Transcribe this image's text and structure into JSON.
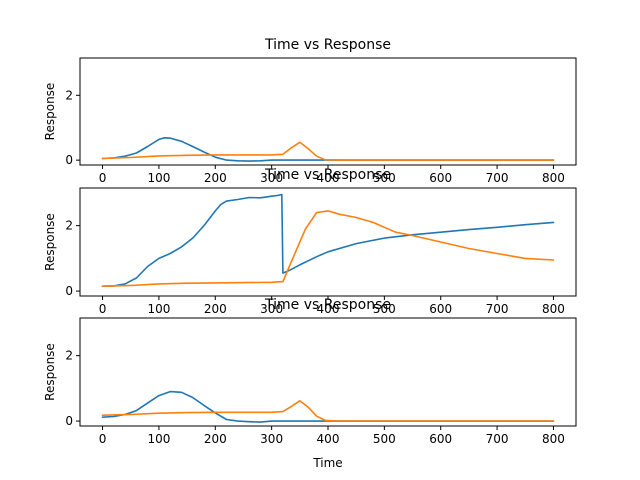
{
  "chart_data": [
    {
      "type": "line",
      "title": "Time vs Response",
      "xlabel": "",
      "ylabel": "Response",
      "xlim": [
        -40,
        840
      ],
      "ylim": [
        -0.15,
        3.15
      ],
      "xticks": [
        0,
        100,
        200,
        300,
        400,
        500,
        600,
        700,
        800
      ],
      "yticks": [
        0,
        2
      ],
      "grid": false,
      "colors": [
        "#1f77b4",
        "#ff7f0e"
      ],
      "series": [
        {
          "color": "#1f77b4",
          "x": [
            0,
            20,
            40,
            60,
            80,
            100,
            110,
            120,
            140,
            160,
            180,
            200,
            220,
            240,
            260,
            280,
            300,
            320,
            340,
            360,
            380,
            400,
            450,
            500,
            550,
            600,
            650,
            700,
            750,
            800
          ],
          "y": [
            0.05,
            0.07,
            0.12,
            0.22,
            0.42,
            0.64,
            0.69,
            0.68,
            0.58,
            0.42,
            0.25,
            0.09,
            0.0,
            -0.02,
            -0.03,
            -0.02,
            0.0,
            0.0,
            0.0,
            0.0,
            0.0,
            0.0,
            0.0,
            0.0,
            0.0,
            0.0,
            0.0,
            0.0,
            0.0,
            0.0
          ]
        },
        {
          "color": "#ff7f0e",
          "x": [
            0,
            50,
            100,
            150,
            200,
            250,
            300,
            320,
            335,
            350,
            365,
            380,
            395,
            420,
            450,
            500,
            550,
            600,
            650,
            700,
            750,
            800
          ],
          "y": [
            0.05,
            0.08,
            0.13,
            0.15,
            0.16,
            0.16,
            0.16,
            0.18,
            0.38,
            0.55,
            0.35,
            0.12,
            0.01,
            0.0,
            0.0,
            0.0,
            0.0,
            0.0,
            0.0,
            0.0,
            0.0,
            0.0
          ]
        }
      ]
    },
    {
      "type": "line",
      "title": "Time vs Response",
      "xlabel": "",
      "ylabel": "Response",
      "xlim": [
        -40,
        840
      ],
      "ylim": [
        -0.15,
        3.15
      ],
      "xticks": [
        0,
        100,
        200,
        300,
        400,
        500,
        600,
        700,
        800
      ],
      "yticks": [
        0,
        2
      ],
      "grid": false,
      "colors": [
        "#1f77b4",
        "#ff7f0e"
      ],
      "series": [
        {
          "color": "#1f77b4",
          "x": [
            0,
            20,
            40,
            60,
            80,
            100,
            120,
            140,
            160,
            180,
            200,
            210,
            220,
            240,
            260,
            280,
            300,
            310,
            318,
            320,
            330,
            350,
            380,
            400,
            450,
            500,
            550,
            600,
            650,
            700,
            750,
            800
          ],
          "y": [
            0.15,
            0.16,
            0.22,
            0.4,
            0.75,
            1.0,
            1.15,
            1.35,
            1.62,
            2.0,
            2.45,
            2.65,
            2.75,
            2.8,
            2.86,
            2.85,
            2.9,
            2.92,
            2.95,
            0.55,
            0.62,
            0.8,
            1.05,
            1.2,
            1.45,
            1.62,
            1.72,
            1.8,
            1.88,
            1.95,
            2.03,
            2.1
          ]
        },
        {
          "color": "#ff7f0e",
          "x": [
            0,
            50,
            100,
            150,
            200,
            250,
            300,
            320,
            340,
            360,
            380,
            400,
            420,
            450,
            480,
            500,
            520,
            550,
            600,
            650,
            700,
            750,
            800
          ],
          "y": [
            0.15,
            0.17,
            0.22,
            0.24,
            0.25,
            0.26,
            0.27,
            0.29,
            1.1,
            1.9,
            2.4,
            2.45,
            2.35,
            2.25,
            2.1,
            1.95,
            1.8,
            1.7,
            1.5,
            1.3,
            1.15,
            1.0,
            0.95
          ]
        }
      ]
    },
    {
      "type": "line",
      "title": "Time vs Response",
      "xlabel": "Time",
      "ylabel": "Response",
      "xlim": [
        -40,
        840
      ],
      "ylim": [
        -0.15,
        3.15
      ],
      "xticks": [
        0,
        100,
        200,
        300,
        400,
        500,
        600,
        700,
        800
      ],
      "yticks": [
        0,
        2
      ],
      "grid": false,
      "colors": [
        "#1f77b4",
        "#ff7f0e"
      ],
      "series": [
        {
          "color": "#1f77b4",
          "x": [
            0,
            20,
            40,
            60,
            80,
            100,
            120,
            140,
            160,
            180,
            200,
            220,
            240,
            260,
            280,
            300,
            320,
            340,
            360,
            380,
            400,
            450,
            500,
            550,
            600,
            650,
            700,
            750,
            800
          ],
          "y": [
            0.12,
            0.14,
            0.2,
            0.32,
            0.55,
            0.78,
            0.9,
            0.88,
            0.72,
            0.48,
            0.25,
            0.05,
            0.0,
            -0.02,
            -0.03,
            0.0,
            0.0,
            0.0,
            0.0,
            0.0,
            0.0,
            0.0,
            0.0,
            0.0,
            0.0,
            0.0,
            0.0,
            0.0,
            0.0
          ]
        },
        {
          "color": "#ff7f0e",
          "x": [
            0,
            50,
            100,
            150,
            200,
            250,
            300,
            320,
            335,
            350,
            365,
            380,
            395,
            420,
            450,
            500,
            550,
            600,
            650,
            700,
            750,
            800
          ],
          "y": [
            0.18,
            0.2,
            0.24,
            0.26,
            0.27,
            0.27,
            0.27,
            0.29,
            0.45,
            0.62,
            0.42,
            0.15,
            0.02,
            0.0,
            0.0,
            0.0,
            0.0,
            0.0,
            0.0,
            0.0,
            0.0,
            0.0
          ]
        }
      ]
    }
  ]
}
